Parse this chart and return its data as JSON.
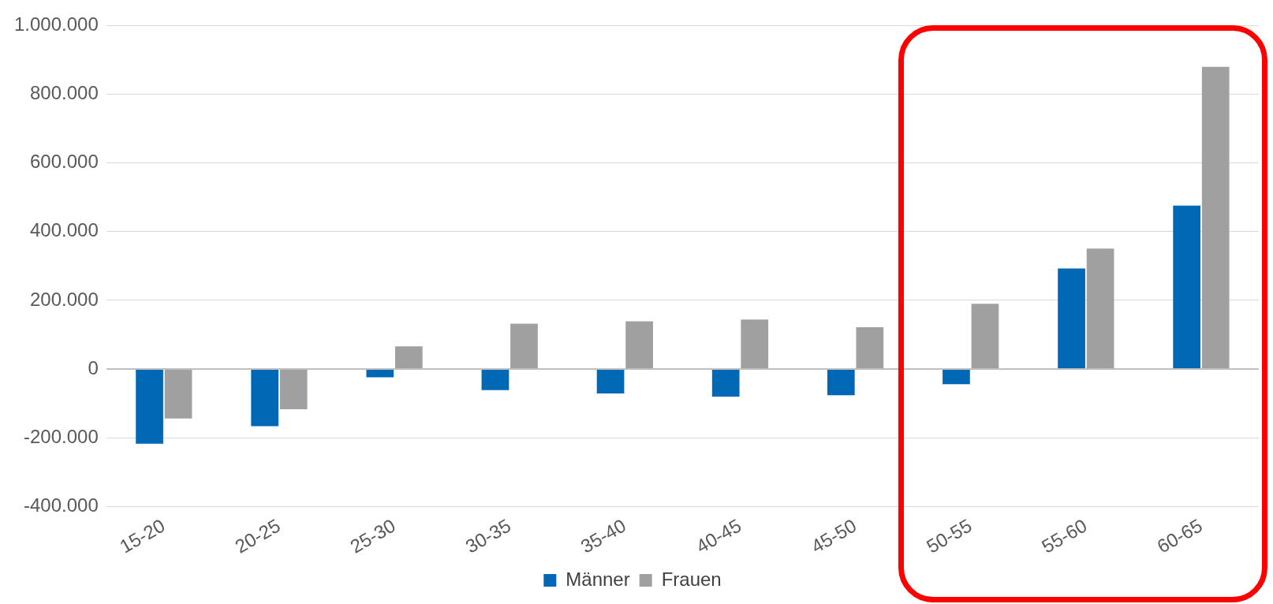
{
  "chart_data": {
    "type": "bar",
    "categories": [
      "15-20",
      "20-25",
      "25-30",
      "30-35",
      "35-40",
      "40-45",
      "45-50",
      "50-55",
      "55-60",
      "60-65"
    ],
    "series": [
      {
        "name": "Männer",
        "color": "#0068b4",
        "values": [
          -217000,
          -166000,
          -24000,
          -61000,
          -71000,
          -80000,
          -76000,
          -44000,
          293000,
          476000
        ]
      },
      {
        "name": "Frauen",
        "color": "#a0a0a0",
        "values": [
          -144000,
          -117000,
          66000,
          132000,
          139000,
          144000,
          122000,
          190000,
          351000,
          880000
        ]
      }
    ],
    "ylim": [
      -400000,
      1000000
    ],
    "yticks": [
      {
        "value": -400000,
        "label": "-400.000"
      },
      {
        "value": -200000,
        "label": "-200.000"
      },
      0,
      {
        "value": 200000,
        "label": "200.000"
      },
      {
        "value": 400000,
        "label": "400.000"
      },
      {
        "value": 600000,
        "label": "600.000"
      },
      {
        "value": 800000,
        "label": "800.000"
      },
      {
        "value": 1000000,
        "label": "1.000.000"
      }
    ],
    "grid": "y",
    "legend": "bottom"
  }
}
